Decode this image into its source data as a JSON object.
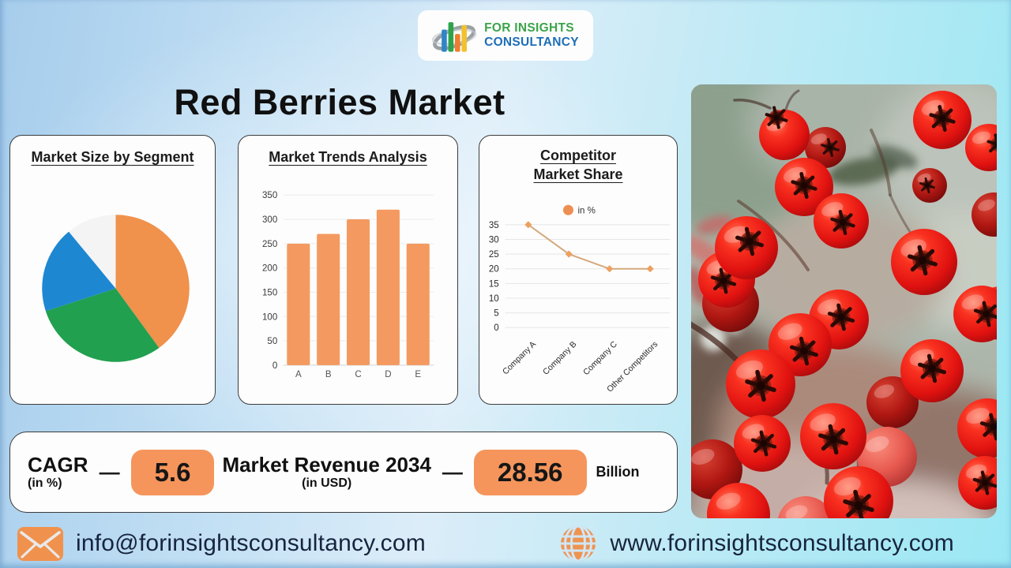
{
  "title": "Red Berries Market",
  "logo": {
    "line1": "FOR INSIGHTS",
    "line2": "CONSULTANCY"
  },
  "chart_data": [
    {
      "type": "pie",
      "title": "Market Size by Segment",
      "slices": [
        {
          "value": 40,
          "color": "#f0914c"
        },
        {
          "value": 30,
          "color": "#21a04f"
        },
        {
          "value": 19,
          "color": "#1e87d2"
        },
        {
          "value": 11,
          "color": "#f4f4f4"
        }
      ],
      "legend_position": "none"
    },
    {
      "type": "bar",
      "title": "Market Trends Analysis",
      "categories": [
        "A",
        "B",
        "C",
        "D",
        "E"
      ],
      "values": [
        250,
        270,
        300,
        320,
        250
      ],
      "ylim": [
        0,
        350
      ],
      "ytick_step": 50,
      "bar_color": "#f49a60",
      "grid": true
    },
    {
      "type": "line",
      "title": "Competitor Market Share",
      "legend": "in %",
      "categories": [
        "Company A",
        "Company B",
        "Company C",
        "Other Competitors"
      ],
      "values": [
        35,
        25,
        20,
        20
      ],
      "ylim": [
        0,
        35
      ],
      "ytick_step": 5,
      "line_color": "#d4a97e",
      "marker_color": "#eda05f",
      "legend_dot_color": "#ef8e52",
      "grid": true
    }
  ],
  "stats": {
    "cagr_label": "CAGR",
    "cagr_unit": "(in %)",
    "cagr_value": "5.6",
    "dash": "—",
    "revenue_label": "Market Revenue 2034",
    "revenue_unit": "(in USD)",
    "revenue_value": "28.56",
    "revenue_suffix": "Billion"
  },
  "footer": {
    "email": "info@forinsightsconsultancy.com",
    "website": "www.forinsightsconsultancy.com"
  },
  "photo": {
    "alt": "Close-up of bright red berries with dark star-shaped tips"
  },
  "colors": {
    "background_left": "#a6cdec",
    "background_right": "#9ae8f4",
    "accent_orange": "#f5955c",
    "card_border": "#3c3c3c",
    "footer_text": "#17243e",
    "logo_green": "#3ba44a",
    "logo_blue": "#1d6eb7"
  }
}
